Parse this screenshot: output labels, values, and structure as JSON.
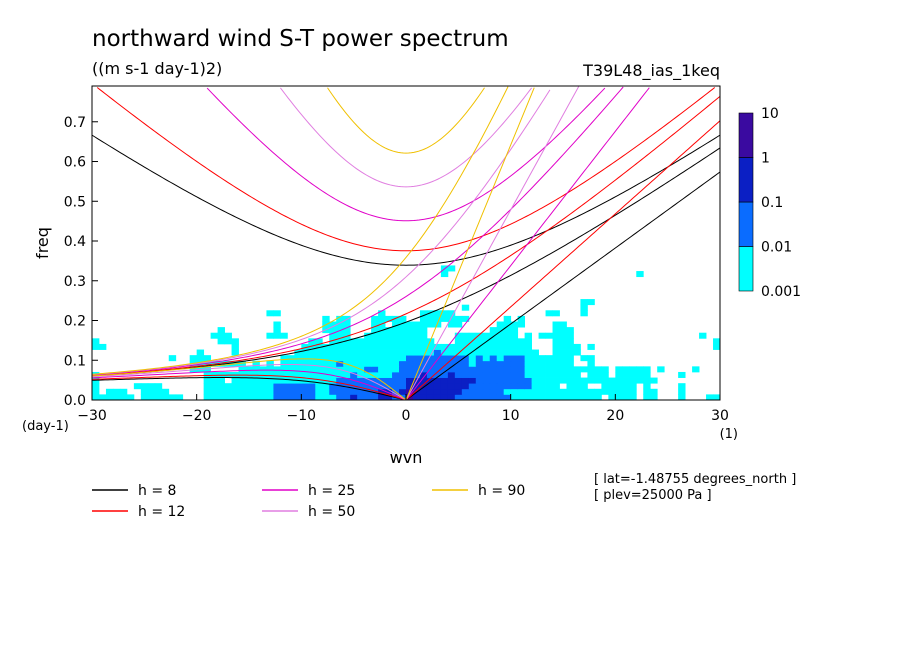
{
  "chart_data": {
    "type": "heatmap",
    "title": "northward wind S-T power spectrum",
    "subtitle": "((m s-1 day-1)2)",
    "run_label": "T39L48_ias_1keq",
    "xlabel": "wvn",
    "ylabel": "freq",
    "x_unit": "(1)",
    "y_unit": "(day-1)",
    "xlim": [
      -30,
      30
    ],
    "ylim": [
      0,
      0.79
    ],
    "x_ticks": [
      -30,
      -20,
      -10,
      0,
      10,
      20,
      30
    ],
    "x_tick_labels": [
      "-30",
      "-20",
      "-10",
      "0",
      "10",
      "20",
      "30"
    ],
    "y_ticks": [
      0,
      0.1,
      0.2,
      0.3,
      0.4,
      0.5,
      0.6,
      0.7
    ],
    "y_tick_labels": [
      "0.0",
      "0.1",
      "0.2",
      "0.3",
      "0.4",
      "0.5",
      "0.6",
      "0.7"
    ],
    "colorbar": {
      "scale": "log",
      "levels": [
        0.001,
        0.01,
        0.1,
        1,
        10
      ],
      "labels": [
        "0.001",
        "0.01",
        "0.1",
        "1",
        "10"
      ],
      "colors": [
        "#00ffff",
        "#0a6cff",
        "#0b1fc4",
        "#3a0aa0"
      ],
      "below_min_color": "#ffffff"
    },
    "dispersion_curves": [
      {
        "label": "h = 8",
        "h": 8,
        "color": "#000000"
      },
      {
        "label": "h = 12",
        "h": 12,
        "color": "#ff0000"
      },
      {
        "label": "h = 25",
        "h": 25,
        "color": "#e000c8"
      },
      {
        "label": "h = 50",
        "h": 50,
        "color": "#e07ee0"
      },
      {
        "label": "h = 90",
        "h": 90,
        "color": "#f0c000"
      }
    ],
    "annotations": [
      "[ lat=-1.48755 degrees_north ]",
      "[ plev=25000 Pa ]"
    ]
  }
}
